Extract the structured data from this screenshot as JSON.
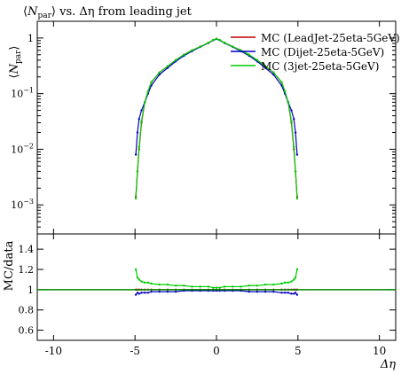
{
  "chart_data": {
    "type": "line",
    "title": "⟨N_par⟩ vs. Δη from leading jet",
    "title_parts": {
      "pre": "⟨",
      "var": "N",
      "sub": "par",
      "post": "⟩ vs. Δη from leading jet"
    },
    "xlabel": "Δη",
    "xlim": [
      -11,
      11
    ],
    "x_ticks": [
      -10,
      -5,
      0,
      5,
      10
    ],
    "x_tick_labels": [
      "-10",
      "-5",
      "0",
      "5",
      "10"
    ],
    "grid": false,
    "legend_position": "top-right",
    "top_panel": {
      "ylabel": "⟨N_par⟩",
      "ylabel_parts": {
        "pre": "⟨",
        "var": "N",
        "sub": "par",
        "post": "⟩"
      },
      "yscale": "log",
      "ylim": [
        0.0003,
        2
      ],
      "y_ticks": [
        1,
        0.1,
        0.01,
        0.001
      ],
      "y_tick_labels": [
        {
          "base": "1",
          "exp": ""
        },
        {
          "base": "10",
          "exp": "−1"
        },
        {
          "base": "10",
          "exp": "−2"
        },
        {
          "base": "10",
          "exp": "−3"
        }
      ]
    },
    "ratio_panel": {
      "ylabel": "MC/data",
      "ylim": [
        0.5,
        1.55
      ],
      "y_ticks": [
        0.6,
        0.8,
        1.0,
        1.2,
        1.4
      ],
      "y_tick_labels": [
        "0.6",
        "0.8",
        "1",
        "1.2",
        "1.4"
      ],
      "reference_line": 1.0
    },
    "x": [
      -4.95,
      -4.85,
      -4.75,
      -4.6,
      -4.4,
      -4.2,
      -4.0,
      -3.5,
      -3.0,
      -2.5,
      -2.0,
      -1.5,
      -1.0,
      -0.5,
      -0.2,
      0.0,
      0.2,
      0.5,
      1.0,
      1.5,
      2.0,
      2.5,
      3.0,
      3.5,
      4.0,
      4.2,
      4.4,
      4.6,
      4.75,
      4.85,
      4.95
    ],
    "series": [
      {
        "name": "MC (LeadJet-25eta-5GeV)",
        "color": "#c00000",
        "values": [
          0.0014,
          0.004,
          0.01,
          0.03,
          0.07,
          0.11,
          0.16,
          0.24,
          0.31,
          0.4,
          0.5,
          0.6,
          0.7,
          0.82,
          0.92,
          0.97,
          0.92,
          0.82,
          0.7,
          0.6,
          0.5,
          0.4,
          0.31,
          0.24,
          0.16,
          0.11,
          0.07,
          0.03,
          0.01,
          0.004,
          0.0014
        ],
        "ratio": [
          1.0,
          1.0,
          1.0,
          1.0,
          1.0,
          1.0,
          1.0,
          1.0,
          1.0,
          1.0,
          1.0,
          1.0,
          1.0,
          1.0,
          1.0,
          1.0,
          1.0,
          1.0,
          1.0,
          1.0,
          1.0,
          1.0,
          1.0,
          1.0,
          1.0,
          1.0,
          1.0,
          1.0,
          1.0,
          1.0,
          1.0
        ]
      },
      {
        "name": "MC (Dijet-25eta-5GeV)",
        "color": "#0000c0",
        "values": [
          0.008,
          0.02,
          0.035,
          0.05,
          0.07,
          0.1,
          0.14,
          0.22,
          0.29,
          0.38,
          0.48,
          0.58,
          0.69,
          0.81,
          0.91,
          0.96,
          0.91,
          0.81,
          0.69,
          0.58,
          0.48,
          0.38,
          0.29,
          0.22,
          0.14,
          0.1,
          0.07,
          0.05,
          0.035,
          0.02,
          0.008
        ],
        "ratio": [
          0.95,
          0.97,
          0.96,
          0.97,
          0.97,
          0.97,
          0.98,
          0.98,
          0.98,
          0.98,
          0.99,
          0.99,
          0.99,
          0.99,
          0.99,
          0.99,
          0.99,
          0.99,
          0.99,
          0.99,
          0.98,
          0.98,
          0.98,
          0.98,
          0.97,
          0.97,
          0.97,
          0.96,
          0.96,
          0.97,
          0.95
        ]
      },
      {
        "name": "MC (3jet-25eta-5GeV)",
        "color": "#00cc00",
        "values": [
          0.0013,
          0.004,
          0.011,
          0.032,
          0.07,
          0.11,
          0.16,
          0.24,
          0.31,
          0.4,
          0.5,
          0.6,
          0.7,
          0.82,
          0.92,
          0.97,
          0.92,
          0.82,
          0.7,
          0.6,
          0.5,
          0.4,
          0.31,
          0.24,
          0.16,
          0.11,
          0.07,
          0.032,
          0.011,
          0.004,
          0.0013
        ],
        "ratio": [
          1.2,
          1.12,
          1.1,
          1.08,
          1.07,
          1.07,
          1.06,
          1.05,
          1.05,
          1.04,
          1.04,
          1.03,
          1.03,
          1.03,
          1.02,
          1.02,
          1.02,
          1.03,
          1.03,
          1.03,
          1.04,
          1.04,
          1.05,
          1.05,
          1.06,
          1.07,
          1.07,
          1.08,
          1.1,
          1.12,
          1.2
        ]
      }
    ]
  }
}
